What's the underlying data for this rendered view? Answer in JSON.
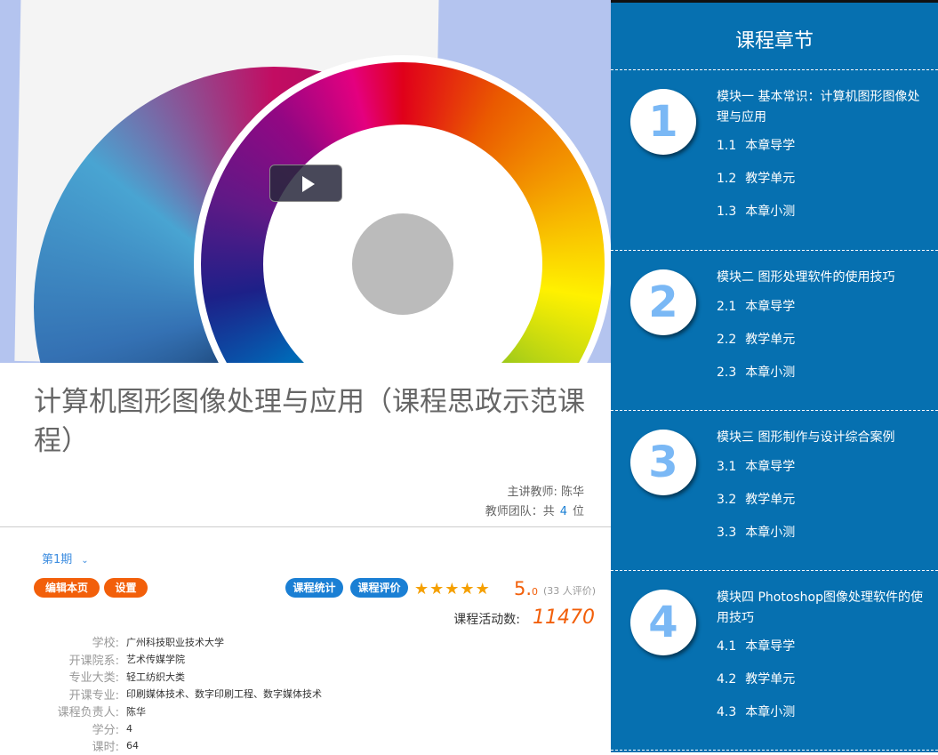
{
  "course": {
    "title": "计算机图形图像处理与应用（课程思政示范课程）",
    "teacher_label": "主讲教师:",
    "teacher": "陈华",
    "team_prefix": "教师团队：共",
    "team_count": "4",
    "team_suffix": "位"
  },
  "term": {
    "label": "第1期",
    "icon": "chevron-down-icon"
  },
  "buttons": {
    "edit": "编辑本页",
    "settings": "设置",
    "stats": "课程统计",
    "review": "课程评价"
  },
  "rating": {
    "stars": 5,
    "score_main": "5.",
    "score_dec": "0",
    "count": "(33 人评价)"
  },
  "activity": {
    "label": "课程活动数:",
    "value": "11470"
  },
  "info": [
    {
      "k": "学校:",
      "v": "广州科技职业技术大学"
    },
    {
      "k": "开课院系:",
      "v": "艺术传媒学院"
    },
    {
      "k": "专业大类:",
      "v": "轻工纺织大类"
    },
    {
      "k": "开课专业:",
      "v": "印刷媒体技术、数字印刷工程、数字媒体技术"
    },
    {
      "k": "课程负责人:",
      "v": "陈华"
    },
    {
      "k": "学分:",
      "v": "4"
    },
    {
      "k": "课时:",
      "v": "64"
    }
  ],
  "chapters": {
    "title": "课程章节",
    "modules": [
      {
        "num": "1",
        "name": "模块一 基本常识：计算机图形图像处理与应用",
        "lessons": [
          {
            "n": "1.1",
            "t": "本章导学"
          },
          {
            "n": "1.2",
            "t": "教学单元"
          },
          {
            "n": "1.3",
            "t": "本章小测"
          }
        ]
      },
      {
        "num": "2",
        "name": "模块二 图形处理软件的使用技巧",
        "lessons": [
          {
            "n": "2.1",
            "t": "本章导学"
          },
          {
            "n": "2.2",
            "t": "教学单元"
          },
          {
            "n": "2.3",
            "t": "本章小测"
          }
        ]
      },
      {
        "num": "3",
        "name": "模块三 图形制作与设计综合案例",
        "lessons": [
          {
            "n": "3.1",
            "t": "本章导学"
          },
          {
            "n": "3.2",
            "t": "教学单元"
          },
          {
            "n": "3.3",
            "t": "本章小测"
          }
        ]
      },
      {
        "num": "4",
        "name": "模块四 Photoshop图像处理软件的使用技巧",
        "lessons": [
          {
            "n": "4.1",
            "t": "本章导学"
          },
          {
            "n": "4.2",
            "t": "教学单元"
          },
          {
            "n": "4.3",
            "t": "本章小测"
          }
        ]
      }
    ]
  },
  "colors": {
    "accent_orange": "#f25f0a",
    "accent_blue": "#1a7fd4",
    "panel_blue": "#0670b0"
  }
}
